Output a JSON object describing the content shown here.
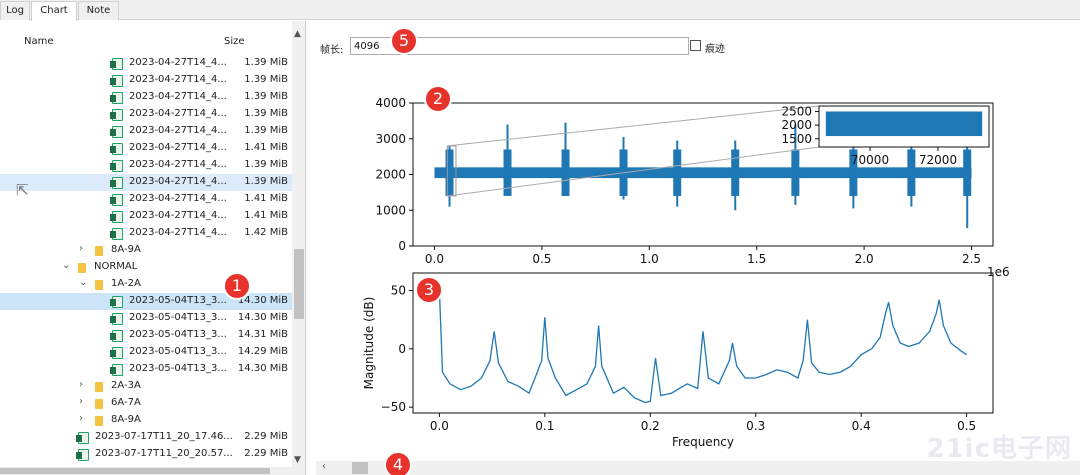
{
  "tabs": [
    {
      "label": "Log"
    },
    {
      "label": "Chart"
    },
    {
      "label": "Note"
    }
  ],
  "tree": {
    "columns": {
      "name": "Name",
      "size": "Size"
    },
    "rows": [
      {
        "type": "file",
        "indent": 2,
        "name": "2023-04-27T14_4...",
        "size": "1.39 MiB"
      },
      {
        "type": "file",
        "indent": 2,
        "name": "2023-04-27T14_4...",
        "size": "1.39 MiB"
      },
      {
        "type": "file",
        "indent": 2,
        "name": "2023-04-27T14_4...",
        "size": "1.39 MiB"
      },
      {
        "type": "file",
        "indent": 2,
        "name": "2023-04-27T14_4...",
        "size": "1.39 MiB"
      },
      {
        "type": "file",
        "indent": 2,
        "name": "2023-04-27T14_4...",
        "size": "1.39 MiB"
      },
      {
        "type": "file",
        "indent": 2,
        "name": "2023-04-27T14_4...",
        "size": "1.41 MiB"
      },
      {
        "type": "file",
        "indent": 2,
        "name": "2023-04-27T14_4...",
        "size": "1.39 MiB"
      },
      {
        "type": "file",
        "indent": 2,
        "name": "2023-04-27T14_4...",
        "size": "1.39 MiB",
        "selected": "hover"
      },
      {
        "type": "file",
        "indent": 2,
        "name": "2023-04-27T14_4...",
        "size": "1.41 MiB"
      },
      {
        "type": "file",
        "indent": 2,
        "name": "2023-04-27T14_4...",
        "size": "1.41 MiB"
      },
      {
        "type": "file",
        "indent": 2,
        "name": "2023-04-27T14_4...",
        "size": "1.42 MiB"
      },
      {
        "type": "folder",
        "indent": 1,
        "arrow": "›",
        "name": "8A-9A",
        "size": ""
      },
      {
        "type": "folder",
        "indent": 0,
        "arrow": "⌄",
        "name": "NORMAL",
        "size": ""
      },
      {
        "type": "folder",
        "indent": 1,
        "arrow": "⌄",
        "name": "1A-2A",
        "size": ""
      },
      {
        "type": "file",
        "indent": 2,
        "name": "2023-05-04T13_3...",
        "size": "14.30 MiB",
        "selected": "active"
      },
      {
        "type": "file",
        "indent": 2,
        "name": "2023-05-04T13_3...",
        "size": "14.30 MiB"
      },
      {
        "type": "file",
        "indent": 2,
        "name": "2023-05-04T13_3...",
        "size": "14.31 MiB"
      },
      {
        "type": "file",
        "indent": 2,
        "name": "2023-05-04T13_3...",
        "size": "14.29 MiB"
      },
      {
        "type": "file",
        "indent": 2,
        "name": "2023-05-04T13_3...",
        "size": "14.30 MiB"
      },
      {
        "type": "folder",
        "indent": 1,
        "arrow": "›",
        "name": "2A-3A",
        "size": ""
      },
      {
        "type": "folder",
        "indent": 1,
        "arrow": "›",
        "name": "6A-7A",
        "size": ""
      },
      {
        "type": "folder",
        "indent": 1,
        "arrow": "›",
        "name": "8A-9A",
        "size": ""
      },
      {
        "type": "file",
        "indent": -1,
        "name": "2023-07-17T11_20_17.46...",
        "size": "2.29 MiB"
      },
      {
        "type": "file",
        "indent": -1,
        "name": "2023-07-17T11_20_20.57...",
        "size": "2.29 MiB"
      }
    ]
  },
  "frame": {
    "label": "帧长:",
    "value": "4096",
    "checkbox_label": "痕迹",
    "checked": false
  },
  "badges": [
    "1",
    "2",
    "3",
    "4",
    "5"
  ],
  "watermark": "21ic电子网",
  "chart_data": [
    {
      "type": "line",
      "title": "",
      "xlabel": "",
      "ylabel": "",
      "x_offset_label": "1e6",
      "xlim": [
        -0.1,
        2.6
      ],
      "ylim": [
        0,
        4000
      ],
      "xticks": [
        0.0,
        0.5,
        1.0,
        1.5,
        2.0,
        2.5
      ],
      "xtick_labels": [
        "0.0",
        "0.5",
        "1.0",
        "1.5",
        "2.0",
        "2.5"
      ],
      "yticks": [
        0,
        1000,
        2000,
        3000,
        4000
      ],
      "ytick_labels": [
        "0",
        "1000",
        "2000",
        "3000",
        "4000"
      ],
      "baseline": 2050,
      "signal_range": [
        0,
        2.5
      ],
      "bursts": [
        {
          "x": 0.07,
          "upper": 2800,
          "lower": 1100
        },
        {
          "x": 0.34,
          "upper": 3400,
          "lower": 1500
        },
        {
          "x": 0.61,
          "upper": 3450,
          "lower": 1400
        },
        {
          "x": 0.88,
          "upper": 3050,
          "lower": 1300
        },
        {
          "x": 1.13,
          "upper": 2950,
          "lower": 1100
        },
        {
          "x": 1.4,
          "upper": 2950,
          "lower": 1000
        },
        {
          "x": 1.68,
          "upper": 3400,
          "lower": 1150
        },
        {
          "x": 1.95,
          "upper": 2950,
          "lower": 1050
        },
        {
          "x": 2.22,
          "upper": 3050,
          "lower": 1100
        },
        {
          "x": 2.48,
          "upper": 2950,
          "lower": 500
        }
      ],
      "inset": {
        "xlim": [
          68500,
          73500
        ],
        "ylim": [
          1200,
          2700
        ],
        "xticks": [
          70000,
          72000
        ],
        "xtick_labels": [
          "70000",
          "72000"
        ],
        "yticks": [
          1500,
          2000,
          2500
        ],
        "ytick_labels": [
          "1500",
          "2000",
          "2500"
        ],
        "band": [
          1600,
          2500
        ],
        "band_x": [
          68700,
          73300
        ]
      },
      "zoom_box": {
        "x": [
          0.06,
          0.1
        ],
        "y": [
          1400,
          2800
        ]
      }
    },
    {
      "type": "line",
      "title": "",
      "xlabel": "Frequency",
      "ylabel": "Magnitude (dB)",
      "xlim": [
        -0.025,
        0.525
      ],
      "ylim": [
        -55,
        65
      ],
      "xticks": [
        0.0,
        0.1,
        0.2,
        0.3,
        0.4,
        0.5
      ],
      "xtick_labels": [
        "0.0",
        "0.1",
        "0.2",
        "0.3",
        "0.4",
        "0.5"
      ],
      "yticks": [
        -50,
        0,
        50
      ],
      "ytick_labels": [
        "−50",
        "0",
        "50"
      ],
      "points": [
        [
          0.0,
          50
        ],
        [
          0.003,
          -20
        ],
        [
          0.01,
          -30
        ],
        [
          0.02,
          -35
        ],
        [
          0.03,
          -32
        ],
        [
          0.04,
          -25
        ],
        [
          0.048,
          -10
        ],
        [
          0.052,
          15
        ],
        [
          0.056,
          -12
        ],
        [
          0.065,
          -28
        ],
        [
          0.075,
          -32
        ],
        [
          0.085,
          -38
        ],
        [
          0.092,
          -22
        ],
        [
          0.097,
          -10
        ],
        [
          0.1,
          27
        ],
        [
          0.103,
          -8
        ],
        [
          0.11,
          -25
        ],
        [
          0.12,
          -40
        ],
        [
          0.13,
          -35
        ],
        [
          0.14,
          -30
        ],
        [
          0.148,
          -15
        ],
        [
          0.151,
          20
        ],
        [
          0.154,
          -15
        ],
        [
          0.165,
          -38
        ],
        [
          0.175,
          -33
        ],
        [
          0.185,
          -42
        ],
        [
          0.195,
          -46
        ],
        [
          0.2,
          -45
        ],
        [
          0.205,
          -8
        ],
        [
          0.21,
          -40
        ],
        [
          0.22,
          -38
        ],
        [
          0.235,
          -30
        ],
        [
          0.245,
          -34
        ],
        [
          0.25,
          15
        ],
        [
          0.255,
          -25
        ],
        [
          0.265,
          -30
        ],
        [
          0.275,
          -10
        ],
        [
          0.278,
          5
        ],
        [
          0.282,
          -15
        ],
        [
          0.29,
          -25
        ],
        [
          0.3,
          -25
        ],
        [
          0.31,
          -22
        ],
        [
          0.32,
          -18
        ],
        [
          0.33,
          -20
        ],
        [
          0.34,
          -25
        ],
        [
          0.345,
          -10
        ],
        [
          0.349,
          25
        ],
        [
          0.353,
          -12
        ],
        [
          0.36,
          -20
        ],
        [
          0.37,
          -22
        ],
        [
          0.38,
          -20
        ],
        [
          0.39,
          -15
        ],
        [
          0.4,
          -5
        ],
        [
          0.41,
          0
        ],
        [
          0.418,
          10
        ],
        [
          0.423,
          30
        ],
        [
          0.426,
          40
        ],
        [
          0.43,
          20
        ],
        [
          0.437,
          5
        ],
        [
          0.445,
          2
        ],
        [
          0.455,
          5
        ],
        [
          0.465,
          15
        ],
        [
          0.471,
          30
        ],
        [
          0.474,
          42
        ],
        [
          0.478,
          20
        ],
        [
          0.485,
          5
        ],
        [
          0.495,
          -2
        ],
        [
          0.5,
          -5
        ]
      ]
    }
  ]
}
